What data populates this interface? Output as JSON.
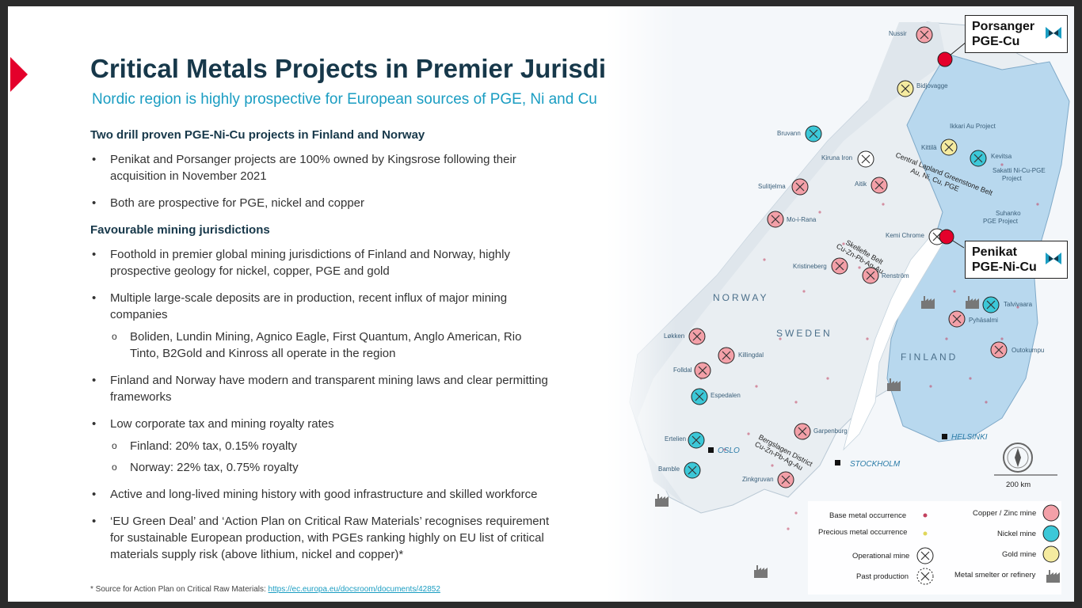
{
  "header": {
    "title": "Critical Metals Projects in Premier Jurisdictions",
    "subtitle": "Nordic region is highly prospective for European sources of PGE, Ni and Cu"
  },
  "sections": [
    {
      "heading": "Two drill proven PGE-Ni-Cu projects in Finland and Norway",
      "bullets": [
        "Penikat and Porsanger projects are 100% owned by Kingsrose following their acquisition in November 2021",
        "Both are prospective for PGE, nickel and copper"
      ]
    },
    {
      "heading": "Favourable mining jurisdictions",
      "bullets": [
        "Foothold in premier global mining jurisdictions of Finland and Norway, highly prospective geology for nickel, copper, PGE and gold",
        "Multiple large-scale deposits are in production, recent influx of major mining companies",
        "Finland and Norway have modern and transparent mining laws and clear permitting frameworks",
        "Low corporate tax and mining royalty rates",
        "Active and long-lived mining history with good infrastructure and skilled workforce",
        "‘EU Green Deal’ and ‘Action Plan on Critical Raw Materials’ recognises requirement for sustainable European production, with PGEs ranking highly on EU list of critical materials supply risk (above lithium, nickel and copper)*"
      ],
      "sub_bullets": {
        "majors": "Boliden, Lundin Mining, Agnico Eagle, First Quantum, Anglo American, Rio Tinto, B2Gold and Kinross all operate in the region",
        "finland_tax": "Finland: 20% tax, 0.15% royalty",
        "norway_tax": "Norway: 22% tax, 0.75% royalty"
      }
    }
  ],
  "footnote": {
    "text": "* Source for Action Plan on Critical Raw Materials: ",
    "link": "https://ec.europa.eu/docsroom/documents/42852"
  },
  "map": {
    "callouts": {
      "porsanger": "Porsanger\nPGE-Cu",
      "penikat": "Penikat\nPGE-Ni-Cu"
    },
    "countries": {
      "norway": "NORWAY",
      "sweden": "SWEDEN",
      "finland": "FINLAND"
    },
    "cities": {
      "oslo": "OSLO",
      "stockholm": "STOCKHOLM",
      "helsinki": "HELSINKI"
    },
    "belts": {
      "lapland_1": "Central Lapland Greenstone Belt",
      "lapland_2": "Au, Ni, Cu, PGE",
      "skellefte_1": "Skellefte Belt",
      "skellefte_2": "Cu-Zn-Pb-Ag-Au",
      "bergslagen_1": "Bergslagen District",
      "bergslagen_2": "Cu-Zn-Pb-Ag-Au"
    },
    "places": {
      "nussir": "Nussir",
      "bidjovagge": "Bidjovagge",
      "bruvann": "Bruvann",
      "ikkari": "Ikkari Au Project",
      "kittila": "Kittilä",
      "kevitsa": "Kevitsa",
      "sakatti_1": "Sakatti Ni-Cu-PGE",
      "sakatti_2": "Project",
      "kiruna": "Kiruna Iron",
      "aitik": "Aitik",
      "sulitjelma": "Sulitjelma",
      "suhanko_1": "Suhanko",
      "suhanko_2": "PGE Project",
      "kemi": "Kemi Chrome",
      "moirana": "Mo-i-Rana",
      "kristineberg": "Kristineberg",
      "renstrom": "Renström",
      "talvivaara": "Talvivaara",
      "pyhasalmi": "Pyhäsalmi",
      "outokumpu": "Outokumpu",
      "lokken": "Løkken",
      "killingdal": "Killingdal",
      "folldal": "Folldal",
      "espedalen": "Espedalen",
      "ertelien": "Ertelien",
      "bamble": "Bamble",
      "garpenburg": "Garpenburg",
      "zinkgruvan": "Zinkgruvan"
    },
    "scale": "200 km",
    "legend": {
      "base_metal": "Base metal occurrence",
      "precious_metal": "Precious metal occurrence",
      "operational": "Operational mine",
      "past": "Past production",
      "copper_zinc": "Copper / Zinc mine",
      "nickel": "Nickel mine",
      "gold": "Gold mine",
      "smelter": "Metal smelter or refinery"
    },
    "colors": {
      "copper_zinc": "#f3a0a8",
      "nickel": "#3cc8d8",
      "gold": "#f5eba0",
      "project": "#e4002b",
      "finland_fill": "#b8d8ee"
    }
  }
}
